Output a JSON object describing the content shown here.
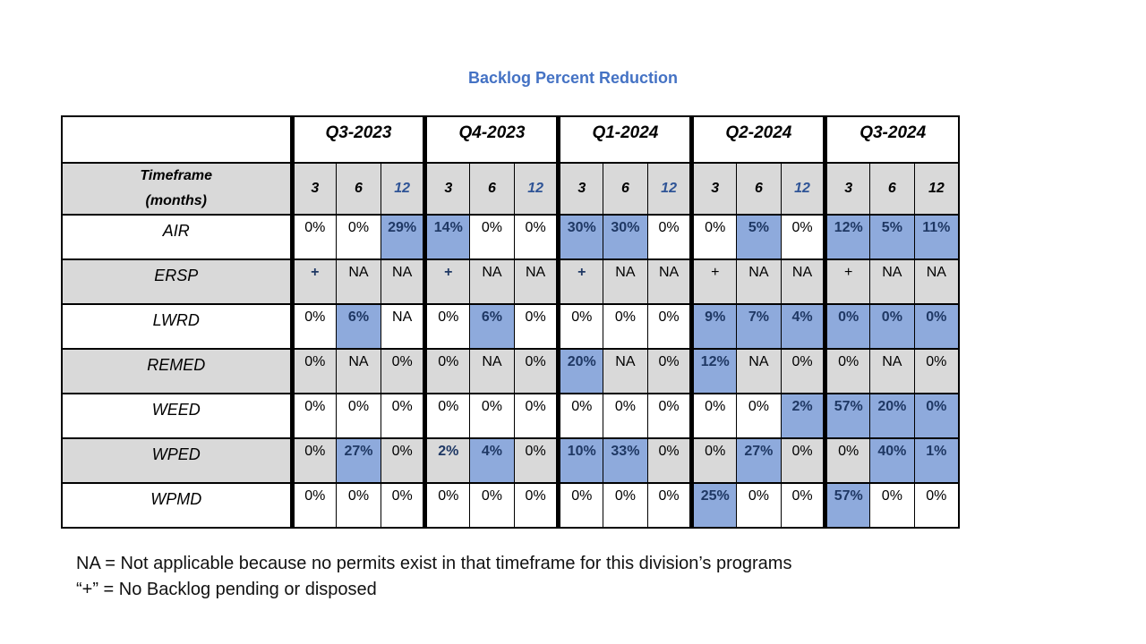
{
  "title": "Backlog Percent Reduction",
  "colors": {
    "title": "#4472C4",
    "highlight": "#8EAADC",
    "shade": "#D9D9D9",
    "accent": "#1F3864",
    "blue12": "#2F5496",
    "border": "#000000"
  },
  "table": {
    "corner_label": "",
    "timeframe_line1": "Timeframe",
    "timeframe_line2": "(months)",
    "quarters": [
      "Q3-2023",
      "Q4-2023",
      "Q1-2024",
      "Q2-2024",
      "Q3-2024"
    ],
    "month_cells": [
      {
        "v": "3"
      },
      {
        "v": "6"
      },
      {
        "v": "12",
        "blue": true
      },
      {
        "v": "3"
      },
      {
        "v": "6"
      },
      {
        "v": "12",
        "blue": true
      },
      {
        "v": "3"
      },
      {
        "v": "6"
      },
      {
        "v": "12",
        "blue": true
      },
      {
        "v": "3"
      },
      {
        "v": "6"
      },
      {
        "v": "12",
        "blue": true
      },
      {
        "v": "3"
      },
      {
        "v": "6"
      },
      {
        "v": "12"
      }
    ]
  },
  "rows": [
    {
      "division": "AIR",
      "shaded": false,
      "cells": [
        {
          "v": "0%"
        },
        {
          "v": "0%"
        },
        {
          "v": "29%",
          "hl": true
        },
        {
          "v": "14%",
          "hl": true
        },
        {
          "v": "0%"
        },
        {
          "v": "0%"
        },
        {
          "v": "30%",
          "hl": true
        },
        {
          "v": "30%",
          "hl": true
        },
        {
          "v": "0%"
        },
        {
          "v": "0%"
        },
        {
          "v": "5%",
          "hl": true
        },
        {
          "v": "0%"
        },
        {
          "v": "12%",
          "hl": true
        },
        {
          "v": "5%",
          "hl": true
        },
        {
          "v": "11%",
          "hl": true
        }
      ]
    },
    {
      "division": "ERSP",
      "shaded": true,
      "cells": [
        {
          "v": "+",
          "b": true
        },
        {
          "v": "NA"
        },
        {
          "v": "NA"
        },
        {
          "v": "+",
          "b": true
        },
        {
          "v": "NA"
        },
        {
          "v": "NA"
        },
        {
          "v": "+",
          "b": true
        },
        {
          "v": "NA"
        },
        {
          "v": "NA"
        },
        {
          "v": "+"
        },
        {
          "v": "NA"
        },
        {
          "v": "NA"
        },
        {
          "v": "+"
        },
        {
          "v": "NA"
        },
        {
          "v": "NA"
        }
      ]
    },
    {
      "division": "LWRD",
      "shaded": false,
      "cells": [
        {
          "v": "0%"
        },
        {
          "v": "6%",
          "hl": true
        },
        {
          "v": "NA"
        },
        {
          "v": "0%"
        },
        {
          "v": "6%",
          "hl": true
        },
        {
          "v": "0%"
        },
        {
          "v": "0%"
        },
        {
          "v": "0%"
        },
        {
          "v": "0%"
        },
        {
          "v": "9%",
          "hl": true
        },
        {
          "v": "7%",
          "hl": true
        },
        {
          "v": "4%",
          "hl": true
        },
        {
          "v": "0%",
          "hl": true
        },
        {
          "v": "0%",
          "hl": true
        },
        {
          "v": "0%",
          "hl": true
        }
      ]
    },
    {
      "division": "REMED",
      "shaded": true,
      "cells": [
        {
          "v": "0%"
        },
        {
          "v": "NA"
        },
        {
          "v": "0%"
        },
        {
          "v": "0%"
        },
        {
          "v": "NA"
        },
        {
          "v": "0%"
        },
        {
          "v": "20%",
          "hl": true
        },
        {
          "v": "NA"
        },
        {
          "v": "0%"
        },
        {
          "v": "12%",
          "hl": true
        },
        {
          "v": "NA"
        },
        {
          "v": "0%"
        },
        {
          "v": "0%"
        },
        {
          "v": "NA"
        },
        {
          "v": "0%"
        }
      ]
    },
    {
      "division": "WEED",
      "shaded": false,
      "cells": [
        {
          "v": "0%"
        },
        {
          "v": "0%"
        },
        {
          "v": "0%"
        },
        {
          "v": "0%"
        },
        {
          "v": "0%"
        },
        {
          "v": "0%"
        },
        {
          "v": "0%"
        },
        {
          "v": "0%"
        },
        {
          "v": "0%"
        },
        {
          "v": "0%"
        },
        {
          "v": "0%"
        },
        {
          "v": "2%",
          "hl": true
        },
        {
          "v": "57%",
          "hl": true
        },
        {
          "v": "20%",
          "hl": true
        },
        {
          "v": "0%",
          "hl": true
        }
      ]
    },
    {
      "division": "WPED",
      "shaded": true,
      "cells": [
        {
          "v": "0%"
        },
        {
          "v": "27%",
          "hl": true
        },
        {
          "v": "0%"
        },
        {
          "v": "2%",
          "b": true
        },
        {
          "v": "4%",
          "hl": true
        },
        {
          "v": "0%"
        },
        {
          "v": "10%",
          "hl": true
        },
        {
          "v": "33%",
          "hl": true
        },
        {
          "v": "0%"
        },
        {
          "v": "0%"
        },
        {
          "v": "27%",
          "hl": true
        },
        {
          "v": "0%"
        },
        {
          "v": "0%"
        },
        {
          "v": "40%",
          "hl": true
        },
        {
          "v": "1%",
          "hl": true
        }
      ]
    },
    {
      "division": "WPMD",
      "shaded": false,
      "cells": [
        {
          "v": "0%"
        },
        {
          "v": "0%"
        },
        {
          "v": "0%"
        },
        {
          "v": "0%"
        },
        {
          "v": "0%"
        },
        {
          "v": "0%"
        },
        {
          "v": "0%"
        },
        {
          "v": "0%"
        },
        {
          "v": "0%"
        },
        {
          "v": "25%",
          "hl": true
        },
        {
          "v": "0%"
        },
        {
          "v": "0%"
        },
        {
          "v": "57%",
          "hl": true
        },
        {
          "v": "0%"
        },
        {
          "v": "0%"
        }
      ]
    }
  ],
  "footnotes": [
    "NA = Not applicable because no permits exist in that timeframe for this division’s programs",
    "“+” = No Backlog pending or disposed"
  ]
}
